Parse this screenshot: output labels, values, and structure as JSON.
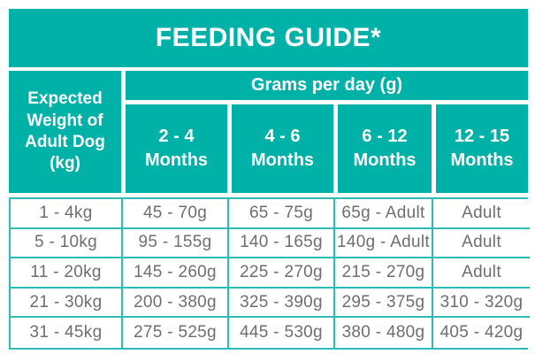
{
  "colors": {
    "teal": "#00b1a8",
    "table_border_teal": "#2dbdb4",
    "body_text_gray": "#6e6e6e",
    "header_text": "#ffffff",
    "background": "#ffffff"
  },
  "chart_data": {
    "type": "table",
    "title": "FEEDING GUIDE*",
    "group_header": "Grams per day (g)",
    "row_header": {
      "full": "Expected Weight of Adult Dog (kg)",
      "lines": [
        "Expected",
        "Weight of",
        "Adult Dog",
        "(kg)"
      ]
    },
    "columns": [
      {
        "range": "2 - 4",
        "unit": "Months",
        "label": "2 - 4 Months"
      },
      {
        "range": "4 - 6",
        "unit": "Months",
        "label": "4 - 6 Months"
      },
      {
        "range": "6 - 12",
        "unit": "Months",
        "label": "6 - 12 Months"
      },
      {
        "range": "12 - 15",
        "unit": "Months",
        "label": "12 - 15 Months"
      }
    ],
    "rows": [
      {
        "weight": "1 - 4kg",
        "values": [
          "45 - 70g",
          "65 - 75g",
          "65g - Adult",
          "Adult"
        ]
      },
      {
        "weight": "5 - 10kg",
        "values": [
          "95 - 155g",
          "140 - 165g",
          "140g - Adult",
          "Adult"
        ]
      },
      {
        "weight": "11 - 20kg",
        "values": [
          "145 - 260g",
          "225 - 270g",
          "215 - 270g",
          "Adult"
        ]
      },
      {
        "weight": "21 - 30kg",
        "values": [
          "200 - 380g",
          "325 - 390g",
          "295 - 375g",
          "310 - 320g"
        ]
      },
      {
        "weight": "31 - 45kg",
        "values": [
          "275 - 525g",
          "445 - 530g",
          "380 - 480g",
          "405 - 420g"
        ]
      }
    ]
  }
}
